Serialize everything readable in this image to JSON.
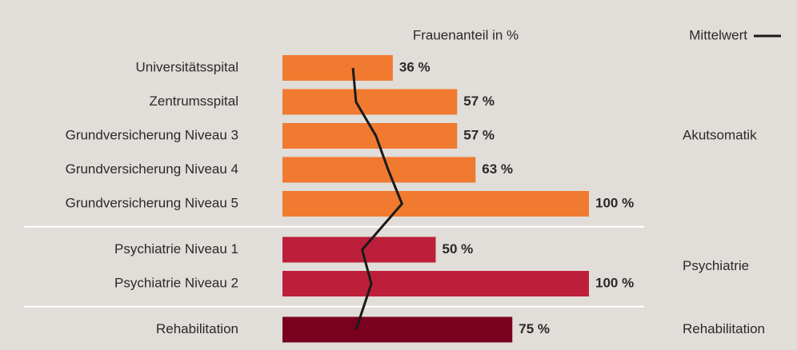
{
  "chart_data": {
    "type": "bar",
    "orientation": "horizontal",
    "xlabel": "Frauenanteil in %",
    "xlim": [
      0,
      100
    ],
    "mean_name": "Mittelwert",
    "mean_color": "#1a1a1a",
    "groups": [
      {
        "name": "Akutsomatik",
        "color": "#f07a2f",
        "categories": [
          "Universitätsspital",
          "Zentrumsspital",
          "Grundversicherung Niveau 3",
          "Grundversicherung Niveau 4",
          "Grundversicherung Niveau 5"
        ],
        "values": [
          36,
          57,
          57,
          63,
          100
        ],
        "value_labels": [
          "36 %",
          "57 %",
          "57 %",
          "63 %",
          "100 %"
        ],
        "mean": [
          23,
          24,
          30.5,
          34.5,
          39
        ]
      },
      {
        "name": "Psychiatrie",
        "color": "#bd1f3a",
        "categories": [
          "Psychiatrie Niveau 1",
          "Psychiatrie Niveau 2"
        ],
        "values": [
          50,
          100
        ],
        "value_labels": [
          "50 %",
          "100 %"
        ],
        "mean": [
          26,
          29
        ]
      },
      {
        "name": "Rehabilitation",
        "color": "#7a0020",
        "categories": [
          "Rehabilitation"
        ],
        "values": [
          75
        ],
        "value_labels": [
          "75 %"
        ],
        "mean": [
          24
        ]
      }
    ]
  }
}
